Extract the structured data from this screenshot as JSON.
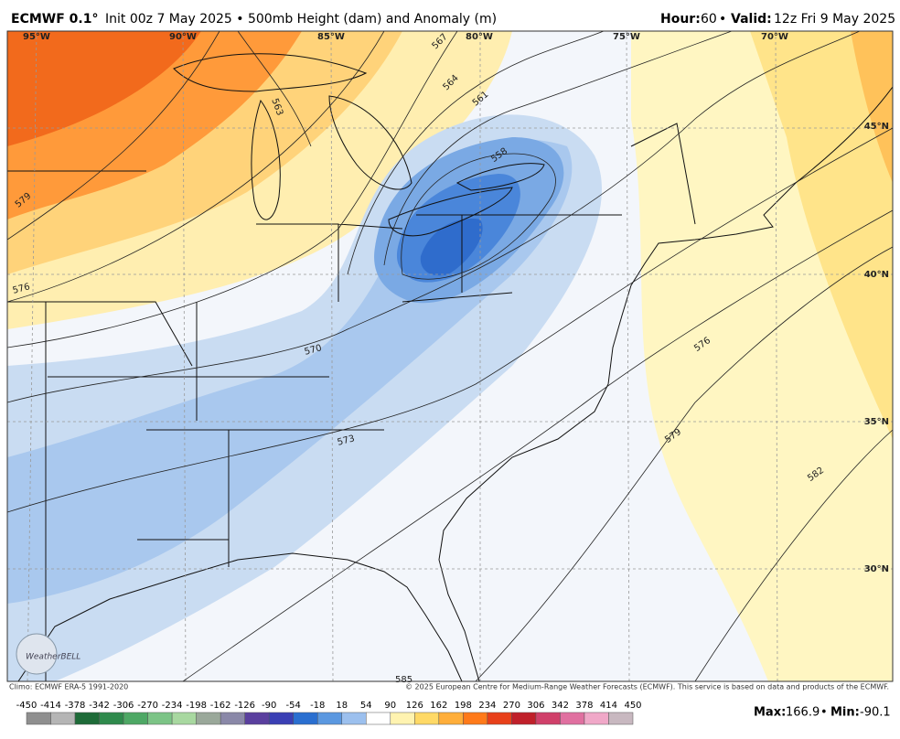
{
  "header": {
    "model": "ECMWF 0.1°",
    "title": "Init 00z 7 May 2025 • 500mb Height (dam) and Anomaly (m)",
    "hour_label": "Hour:",
    "hour": 60,
    "separator": "•",
    "valid_label": "Valid:",
    "valid": "12z Fri 9 May 2025"
  },
  "map": {
    "lon_labels": [
      "95°W",
      "90°W",
      "85°W",
      "80°W",
      "75°W",
      "70°W"
    ],
    "lat_labels": [
      "45°N",
      "40°N",
      "35°N",
      "30°N"
    ],
    "contour_labels": [
      579,
      576,
      563,
      567,
      564,
      561,
      558,
      570,
      573,
      576,
      579,
      582,
      585
    ],
    "logo": "WeatherBELL"
  },
  "footer": {
    "climo": "Climo: ECMWF ERA-5 1991-2020",
    "copyright": "© 2025 European Centre for Medium-Range Weather Forecasts (ECMWF). This service is based on data and products of the ECMWF.",
    "max_label": "Max:",
    "max": 166.9,
    "min_label": "Min:",
    "min": -90.1
  },
  "colorbar": {
    "ticks": [
      -450,
      -414,
      -378,
      -342,
      -306,
      -270,
      -234,
      -198,
      -162,
      -126,
      -90,
      -54,
      -18,
      18,
      54,
      90,
      126,
      162,
      198,
      234,
      270,
      306,
      342,
      378,
      414,
      450
    ],
    "colors": [
      "#8f8f8f",
      "#b5b5b5",
      "#1e6b38",
      "#2f8a4c",
      "#4ea865",
      "#7cc486",
      "#a8d8a0",
      "#9aa89a",
      "#8a88a8",
      "#5a3f9e",
      "#3a3fb4",
      "#2a6fd0",
      "#5b98e0",
      "#9cc0ee",
      "#ffffff",
      "#fff3b0",
      "#ffd966",
      "#ffae3a",
      "#ff7a1a",
      "#e8401a",
      "#c0202a",
      "#d0406a",
      "#e070a0",
      "#f0a8c8",
      "#c8b8c0"
    ]
  }
}
